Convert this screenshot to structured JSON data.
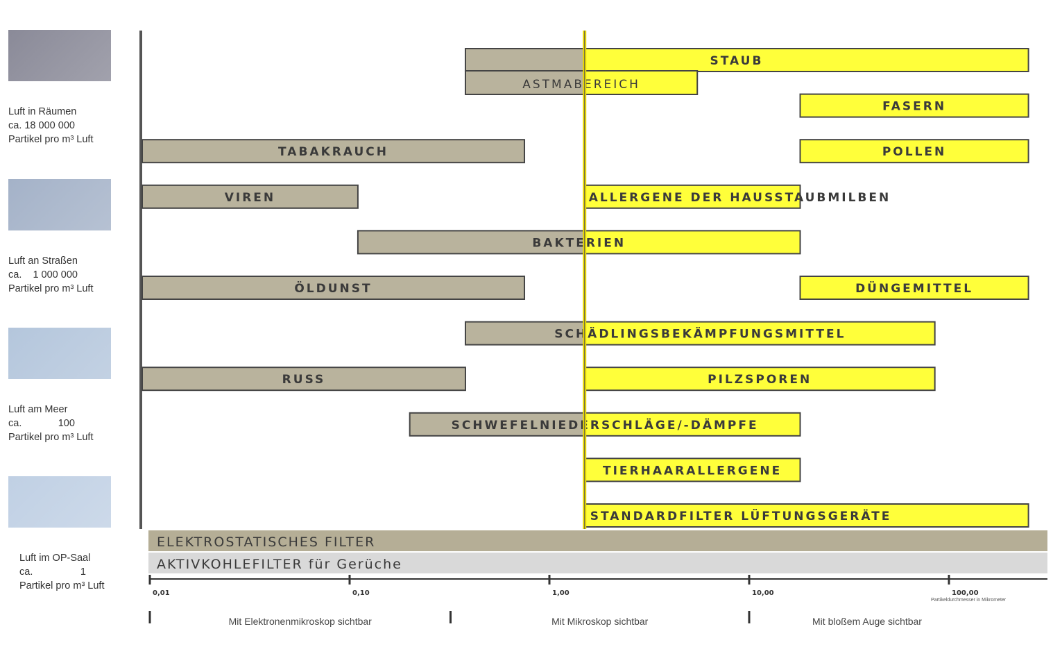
{
  "environments": [
    {
      "label": "Luft in Räumen",
      "count_line": "ca. 18 000 000",
      "unit": "Partikel pro m³ Luft",
      "color": "#8a8a98"
    },
    {
      "label": "Luft an Straßen",
      "count_line": "ca.    1 000 000",
      "unit": "Partikel pro m³ Luft",
      "color": "#a4b2c8"
    },
    {
      "label": "Luft am Meer",
      "count_line": "ca.             100",
      "unit": "Partikel pro m³ Luft",
      "color": "#b4c6dc"
    },
    {
      "label": "Luft im OP-Saal",
      "count_line": "ca.                 1",
      "unit": "Partikel pro m³ Luft",
      "color": "#c0d0e4"
    }
  ],
  "colors": {
    "grey_bar": "#b9b39d",
    "yellow_bar": "#ffff3a",
    "elektro_filter": "#b5ae96",
    "aktiv_filter": "#d9d9d9",
    "axis": "#555555"
  },
  "chart_data": {
    "type": "bar",
    "orientation": "horizontal-range",
    "x_scale": "log",
    "xlim": [
      0.01,
      250
    ],
    "x_ticks": [
      {
        "value": 0.01,
        "label": "0,01"
      },
      {
        "value": 0.1,
        "label": "0,10"
      },
      {
        "value": 1,
        "label": "1,00"
      },
      {
        "value": 10,
        "label": "10,00"
      },
      {
        "value": 100,
        "label": "100,00"
      }
    ],
    "xlabel": "Partikeldurchmesser in Mikrometer",
    "threshold_value": 1.5,
    "items": [
      {
        "name": "STAUB",
        "from": 0.38,
        "to": 250,
        "row": 0
      },
      {
        "name": "ASTMABEREICH",
        "from": 0.38,
        "to": 5.5,
        "row": 0
      },
      {
        "name": "FASERN",
        "from": 18,
        "to": 250,
        "row": 1
      },
      {
        "name": "TABAKRAUCH",
        "from": 0.01,
        "to": 0.75,
        "row": 2
      },
      {
        "name": "POLLEN",
        "from": 18,
        "to": 250,
        "row": 2
      },
      {
        "name": "VIREN",
        "from": 0.01,
        "to": 0.11,
        "row": 3
      },
      {
        "name": "ALLERGENE DER HAUSSTAUBMILBEN",
        "from": 1.5,
        "to": 18,
        "row": 3
      },
      {
        "name": "BAKTERIEN",
        "from": 0.11,
        "to": 18,
        "row": 4
      },
      {
        "name": "ÖLDUNST",
        "from": 0.01,
        "to": 0.75,
        "row": 5
      },
      {
        "name": "DÜNGEMITTEL",
        "from": 18,
        "to": 250,
        "row": 5
      },
      {
        "name": "SCHÄDLINGSBEKÄMPFUNGSMITTEL",
        "from": 0.38,
        "to": 85,
        "row": 6
      },
      {
        "name": "RUSS",
        "from": 0.01,
        "to": 0.38,
        "row": 7
      },
      {
        "name": "PILZSPOREN",
        "from": 1.5,
        "to": 85,
        "row": 7
      },
      {
        "name": "SCHWEFELNIEDERSCHLÄGE/-DÄMPFE",
        "from": 0.2,
        "to": 18,
        "row": 8
      },
      {
        "name": "TIERHAARALLERGENE",
        "from": 1.5,
        "to": 18,
        "row": 9
      },
      {
        "name": "STANDARDFILTER LÜFTUNGSGERÄTE",
        "from": 1.5,
        "to": 250,
        "row": 10
      }
    ],
    "filters": [
      {
        "name": "ELEKTROSTATISCHES FILTER",
        "from": 0.01,
        "to": 250
      },
      {
        "name": "AKTIVKOHLEFILTER für Gerüche",
        "from": 0.01,
        "to": 250
      }
    ],
    "zones": [
      {
        "label": "Mit Elektronenmikroskop sichtbar",
        "from": 0.01,
        "to": 0.32
      },
      {
        "label": "Mit Mikroskop sichtbar",
        "from": 0.32,
        "to": 10
      },
      {
        "label": "Mit bloßem Auge sichtbar",
        "from": 10,
        "to": 250
      }
    ]
  }
}
